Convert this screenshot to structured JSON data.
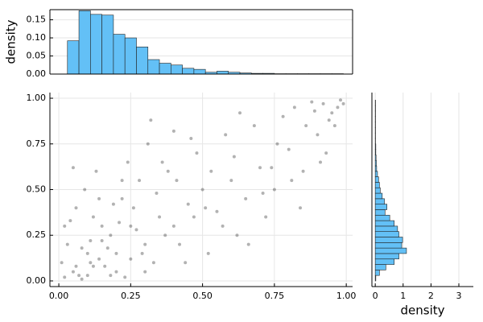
{
  "chart_data": [
    {
      "type": "histogram",
      "orientation": "vertical",
      "ylabel": "density",
      "color": "#63c0f6",
      "bins": [
        0.03,
        0.07,
        0.11,
        0.15,
        0.19,
        0.23,
        0.27,
        0.31,
        0.35,
        0.39,
        0.43,
        0.47,
        0.51,
        0.55,
        0.59,
        0.63,
        0.67,
        0.71,
        0.75,
        0.79,
        0.83,
        0.87,
        0.91,
        0.95,
        0.99
      ],
      "values": [
        0.092,
        0.175,
        0.165,
        0.163,
        0.11,
        0.1,
        0.075,
        0.04,
        0.03,
        0.025,
        0.016,
        0.013,
        0.005,
        0.008,
        0.005,
        0.003,
        0.002,
        0.002,
        0.001,
        0.001,
        0.001,
        0.001,
        0.001,
        0.001
      ],
      "xlim": [
        -0.031,
        1.022
      ],
      "ylim": [
        0,
        0.178
      ],
      "yticks": [
        {
          "value": 0,
          "label": "0.00"
        },
        {
          "value": 0.05,
          "label": "0.05"
        },
        {
          "value": 0.1,
          "label": "0.10"
        },
        {
          "value": 0.15,
          "label": "0.15"
        }
      ],
      "grid": true
    },
    {
      "type": "scatter",
      "color": "#000000",
      "x": [
        0.02,
        0.05,
        0.01,
        0.08,
        0.03,
        0.12,
        0.15,
        0.1,
        0.06,
        0.2,
        0.18,
        0.25,
        0.22,
        0.3,
        0.28,
        0.35,
        0.33,
        0.4,
        0.38,
        0.45,
        0.42,
        0.5,
        0.48,
        0.55,
        0.52,
        0.6,
        0.58,
        0.65,
        0.62,
        0.7,
        0.68,
        0.75,
        0.72,
        0.8,
        0.78,
        0.85,
        0.82,
        0.9,
        0.88,
        0.95,
        0.93,
        0.98,
        0.97,
        0.99,
        0.96,
        0.04,
        0.07,
        0.11,
        0.14,
        0.09,
        0.13,
        0.17,
        0.19,
        0.16,
        0.21,
        0.24,
        0.27,
        0.23,
        0.26,
        0.31,
        0.29,
        0.34,
        0.37,
        0.32,
        0.41,
        0.44,
        0.47,
        0.36,
        0.53,
        0.57,
        0.46,
        0.61,
        0.66,
        0.51,
        0.71,
        0.76,
        0.63,
        0.81,
        0.86,
        0.74,
        0.91,
        0.94,
        0.84,
        0.89,
        0.92,
        0.02,
        0.06,
        0.1,
        0.15,
        0.12,
        0.08,
        0.2,
        0.05,
        0.3,
        0.14,
        0.18,
        0.22,
        0.4,
        0.25,
        0.11
      ],
      "y": [
        0.02,
        0.05,
        0.1,
        0.01,
        0.2,
        0.08,
        0.3,
        0.15,
        0.4,
        0.05,
        0.25,
        0.12,
        0.45,
        0.2,
        0.55,
        0.35,
        0.1,
        0.3,
        0.6,
        0.42,
        0.2,
        0.5,
        0.7,
        0.38,
        0.15,
        0.55,
        0.8,
        0.45,
        0.25,
        0.62,
        0.85,
        0.5,
        0.35,
        0.72,
        0.9,
        0.6,
        0.95,
        0.8,
        0.98,
        0.92,
        0.7,
        0.99,
        0.95,
        0.97,
        0.85,
        0.33,
        0.03,
        0.22,
        0.12,
        0.5,
        0.6,
        0.18,
        0.42,
        0.08,
        0.32,
        0.65,
        0.28,
        0.02,
        0.4,
        0.75,
        0.15,
        0.48,
        0.25,
        0.88,
        0.55,
        0.1,
        0.35,
        0.65,
        0.6,
        0.3,
        0.78,
        0.68,
        0.2,
        0.4,
        0.48,
        0.75,
        0.92,
        0.55,
        0.85,
        0.62,
        0.65,
        0.88,
        0.4,
        0.93,
        0.97,
        0.3,
        0.08,
        0.03,
        0.22,
        0.35,
        0.18,
        0.15,
        0.62,
        0.05,
        0.45,
        0.03,
        0.55,
        0.82,
        0.3,
        0.1
      ],
      "xlim": [
        -0.031,
        1.022
      ],
      "ylim": [
        -0.031,
        1.031
      ],
      "xticks": [
        {
          "value": 0,
          "label": "0.00"
        },
        {
          "value": 0.25,
          "label": "0.25"
        },
        {
          "value": 0.5,
          "label": "0.50"
        },
        {
          "value": 0.75,
          "label": "0.75"
        },
        {
          "value": 1,
          "label": "1.00"
        }
      ],
      "yticks": [
        {
          "value": 0,
          "label": "0.00"
        },
        {
          "value": 0.25,
          "label": "0.25"
        },
        {
          "value": 0.5,
          "label": "0.50"
        },
        {
          "value": 0.75,
          "label": "0.75"
        },
        {
          "value": 1,
          "label": "1.00"
        }
      ],
      "grid": true
    },
    {
      "type": "histogram",
      "orientation": "horizontal",
      "xlabel": "density",
      "color": "#63c0f6",
      "bins": [
        0,
        0.03,
        0.06,
        0.09,
        0.12,
        0.15,
        0.18,
        0.21,
        0.24,
        0.27,
        0.3,
        0.33,
        0.36,
        0.39,
        0.42,
        0.45,
        0.48,
        0.51,
        0.54,
        0.57,
        0.6,
        0.63,
        0.66,
        0.69,
        0.72,
        0.75,
        0.78,
        0.81,
        0.84,
        0.87,
        0.9,
        0.93,
        0.96,
        0.99
      ],
      "values": [
        0.02,
        0.15,
        0.38,
        0.68,
        0.85,
        1.12,
        0.95,
        0.98,
        0.85,
        0.8,
        0.68,
        0.52,
        0.35,
        0.42,
        0.33,
        0.25,
        0.18,
        0.15,
        0.12,
        0.08,
        0.05,
        0.04,
        0.03,
        0.02,
        0.02,
        0.01,
        0.01,
        0.01,
        0.01,
        0.01,
        0.01,
        0.01,
        0.01
      ],
      "xlim": [
        -0.12,
        3.52
      ],
      "ylim": [
        -0.031,
        1.031
      ],
      "xticks": [
        0,
        1,
        2,
        3
      ],
      "grid": true
    }
  ]
}
